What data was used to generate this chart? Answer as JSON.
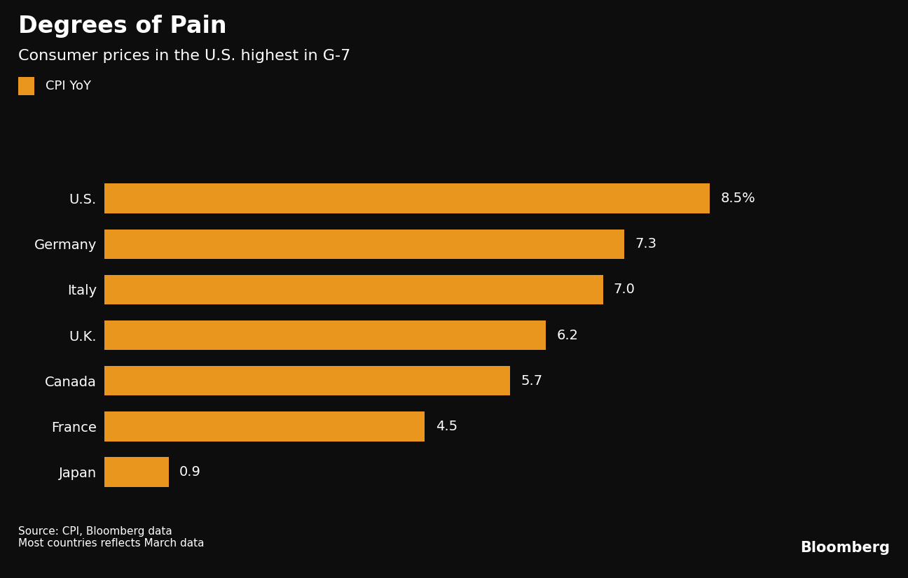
{
  "title": "Degrees of Pain",
  "subtitle": "Consumer prices in the U.S. highest in G-7",
  "legend_label": "CPI YoY",
  "countries": [
    "U.S.",
    "Germany",
    "Italy",
    "U.K.",
    "Canada",
    "France",
    "Japan"
  ],
  "values": [
    8.5,
    7.3,
    7.0,
    6.2,
    5.7,
    4.5,
    0.9
  ],
  "labels": [
    "8.5%",
    "7.3",
    "7.0",
    "6.2",
    "5.7",
    "4.5",
    "0.9"
  ],
  "bar_color": "#E8961E",
  "background_color": "#0d0d0d",
  "text_color": "#ffffff",
  "source_text": "Source: CPI, Bloomberg data\nMost countries reflects March data",
  "bloomberg_text": "Bloomberg",
  "title_fontsize": 24,
  "subtitle_fontsize": 16,
  "label_fontsize": 14,
  "tick_fontsize": 14,
  "source_fontsize": 11,
  "bloomberg_fontsize": 15,
  "legend_fontsize": 13,
  "xlim": [
    0,
    10.2
  ],
  "bar_height": 0.65
}
